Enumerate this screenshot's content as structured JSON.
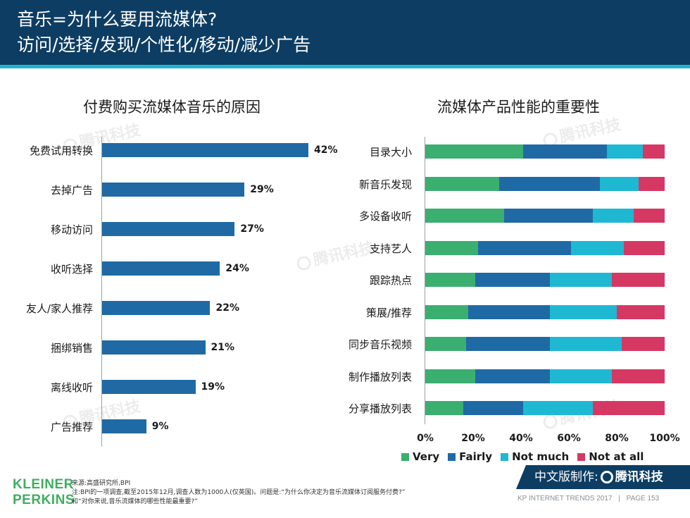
{
  "header": {
    "line1": "音乐=为什么要用流媒体?",
    "line2": "访问/选择/发现/个性化/移动/减少广告"
  },
  "colors": {
    "header_bg": "#0d3d63",
    "header_rule": "#1fb3d1",
    "bar": "#1f6aa5",
    "very": "#3aaf6f",
    "fairly": "#1f6aa5",
    "not_much": "#1fb8d3",
    "not_at_all": "#d63864"
  },
  "watermark": "腾讯科技",
  "chart_data": [
    {
      "type": "bar",
      "orientation": "horizontal",
      "title": "付费购买流媒体音乐的原因",
      "categories": [
        "免费试用转换",
        "去掉广告",
        "移动访问",
        "收听选择",
        "友人/家人推荐",
        "捆绑销售",
        "离线收听",
        "广告推荐"
      ],
      "values": [
        42,
        29,
        27,
        24,
        22,
        21,
        19,
        9
      ],
      "value_labels": [
        "42%",
        "29%",
        "27%",
        "24%",
        "22%",
        "21%",
        "19%",
        "9%"
      ],
      "unit": "%"
    },
    {
      "type": "bar",
      "orientation": "horizontal",
      "stacked": "percent",
      "title": "流媒体产品性能的重要性",
      "categories": [
        "目录大小",
        "新音乐发现",
        "多设备收听",
        "支持艺人",
        "跟踪热点",
        "策展/推荐",
        "同步音乐视频",
        "制作播放列表",
        "分享播放列表"
      ],
      "series": [
        {
          "name": "Very",
          "values": [
            41,
            31,
            33,
            22,
            21,
            18,
            17,
            21,
            16
          ]
        },
        {
          "name": "Fairly",
          "values": [
            35,
            42,
            37,
            39,
            31,
            34,
            35,
            31,
            25
          ]
        },
        {
          "name": "Not much",
          "values": [
            15,
            16,
            17,
            22,
            26,
            28,
            30,
            26,
            29
          ]
        },
        {
          "name": "Not at all",
          "values": [
            9,
            11,
            13,
            17,
            22,
            20,
            18,
            22,
            30
          ]
        }
      ],
      "x_ticks": [
        "0%",
        "20%",
        "40%",
        "60%",
        "80%",
        "100%"
      ],
      "xlim": [
        0,
        100
      ],
      "legend": "bottom"
    }
  ],
  "footer": {
    "logo_line1": "KLEINER",
    "logo_line2": "PERKINS",
    "source": "来源:高盛研究所,BPI",
    "note1": "注:BPI的一项调查,截至2015年12月,调查人数为1000人(仅英国)。问题是:“为什么你决定为音乐流媒体订阅服务付费?”",
    "note2": "和“对你来说,音乐流媒体的哪些性能最重要?”",
    "credit_prefix": "中文版制作:",
    "credit_brand": "腾讯科技",
    "report": "KP INTERNET TRENDS 2017",
    "separator": "|",
    "page": "PAGE 153"
  }
}
